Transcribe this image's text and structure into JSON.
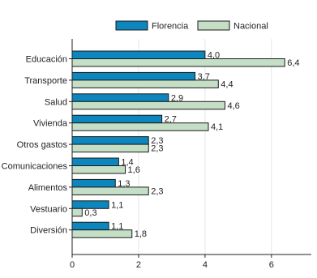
{
  "colors": {
    "florencia": "#0d86bd",
    "nacional": "#c5dfc7",
    "bar_stroke": "#1a1a1a",
    "grid": "#e6e6e6",
    "axis": "#222222"
  },
  "chart_data": {
    "type": "bar",
    "orientation": "horizontal",
    "categories": [
      "Educación",
      "Transporte",
      "Salud",
      "Vivienda",
      "Otros gastos",
      "Comunicaciones",
      "Alimentos",
      "Vestuario",
      "Diversión"
    ],
    "series": [
      {
        "name": "Florencia",
        "values": [
          4.0,
          3.7,
          2.9,
          2.7,
          2.3,
          1.4,
          1.3,
          1.1,
          1.1
        ],
        "labels": [
          "4,0",
          "3,7",
          "2,9",
          "2,7",
          "2,3",
          "1,4",
          "1,3",
          "1,1",
          "1,1"
        ]
      },
      {
        "name": "Nacional",
        "values": [
          6.4,
          4.4,
          4.6,
          4.1,
          2.3,
          1.6,
          2.3,
          0.3,
          1.8
        ],
        "labels": [
          "6,4",
          "4,4",
          "4,6",
          "4,1",
          "2,3",
          "1,6",
          "2,3",
          "0,3",
          "1,8"
        ]
      }
    ],
    "xlim": [
      0,
      7.2
    ],
    "xticks": [
      0,
      2,
      4,
      6
    ],
    "xtick_labels": [
      "0",
      "2",
      "4",
      "6"
    ],
    "grid": true,
    "legend": "top"
  }
}
